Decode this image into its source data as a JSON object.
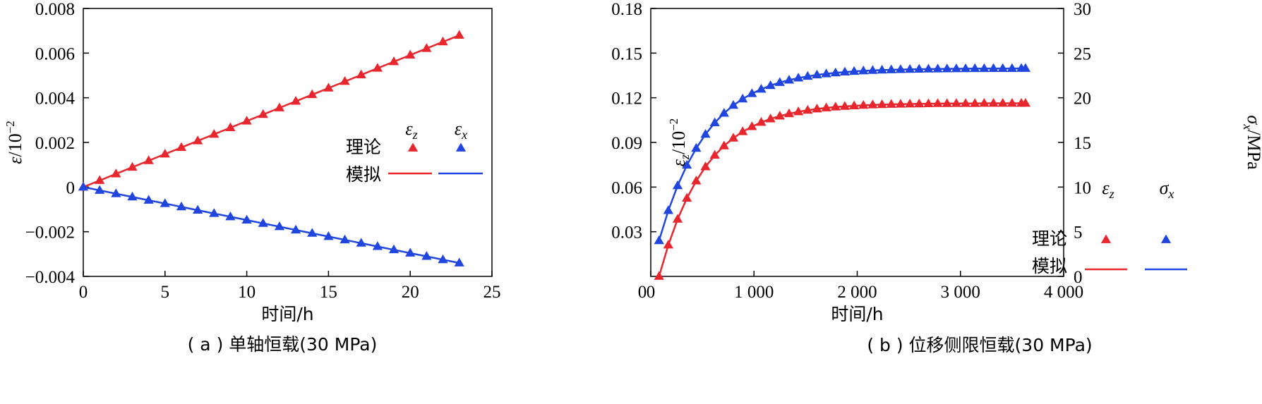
{
  "chart_data": [
    {
      "type": "line",
      "caption": "( a ) 单轴恒载(30 MPa)",
      "xlabel": "时间/h",
      "ylabel": {
        "main": "ε",
        "exp": "/10",
        "sup": "−2"
      },
      "xlim": [
        0,
        25
      ],
      "ylim": [
        -0.004,
        0.008
      ],
      "xticks": [
        0,
        5,
        10,
        15,
        20,
        25
      ],
      "xtick_labels": [
        "0",
        "5",
        "10",
        "15",
        "20",
        "25"
      ],
      "yticks": [
        -0.004,
        -0.002,
        0,
        0.002,
        0.004,
        0.006,
        0.008
      ],
      "ytick_labels": [
        "−0.004",
        "−0.002",
        "0",
        "0.002",
        "0.004",
        "0.006",
        "0.008"
      ],
      "legend": {
        "position": "right-middle",
        "col_labels": [
          {
            "main": "ε",
            "sub": "z"
          },
          {
            "main": "ε",
            "sub": "x"
          }
        ],
        "row_labels": [
          "理论",
          "模拟"
        ]
      },
      "series": [
        {
          "name": "ε_z",
          "color": "#e8262d",
          "x": [
            0,
            1,
            2,
            3,
            4,
            5,
            6,
            7,
            8,
            9,
            10,
            11,
            12,
            13,
            14,
            15,
            16,
            17,
            18,
            19,
            20,
            21,
            22,
            23
          ],
          "values": [
            0,
            0.000296,
            0.000591,
            0.000887,
            0.001183,
            0.001478,
            0.001774,
            0.00207,
            0.002365,
            0.002661,
            0.002957,
            0.003252,
            0.003548,
            0.003843,
            0.004139,
            0.004435,
            0.00473,
            0.005026,
            0.005322,
            0.005617,
            0.005913,
            0.006209,
            0.006504,
            0.0068
          ]
        },
        {
          "name": "ε_x",
          "color": "#2146e0",
          "x": [
            0,
            1,
            2,
            3,
            4,
            5,
            6,
            7,
            8,
            9,
            10,
            11,
            12,
            13,
            14,
            15,
            16,
            17,
            18,
            19,
            20,
            21,
            22,
            23
          ],
          "values": [
            0,
            -0.000148,
            -0.000296,
            -0.000443,
            -0.000591,
            -0.000739,
            -0.000887,
            -0.001035,
            -0.001183,
            -0.00133,
            -0.001478,
            -0.001626,
            -0.001774,
            -0.001922,
            -0.00207,
            -0.002217,
            -0.002365,
            -0.002513,
            -0.002661,
            -0.002809,
            -0.002957,
            -0.003104,
            -0.003252,
            -0.0034
          ]
        }
      ]
    },
    {
      "type": "line",
      "caption": "( b ) 位移侧限恒载(30 MPa)",
      "xlabel": "时间/h",
      "ylabel": {
        "main": "ε",
        "sub": "z",
        "exp": "/10",
        "sup": "−2"
      },
      "y2label": {
        "main": "σ",
        "sub": "x",
        "unit": "/MPa"
      },
      "xlim": [
        0,
        4000
      ],
      "ylim": [
        0,
        0.18
      ],
      "y2lim": [
        0,
        30
      ],
      "xticks": [
        0,
        1000,
        2000,
        3000,
        4000
      ],
      "xtick_labels": [
        "0",
        "1 000",
        "2 000",
        "3 000",
        "4 000"
      ],
      "yticks": [
        0.03,
        0.06,
        0.09,
        0.12,
        0.15,
        0.18
      ],
      "ytick_labels": [
        "0.03",
        "0.06",
        "0.09",
        "0.12",
        "0.15",
        "0.18"
      ],
      "y2ticks": [
        0,
        5,
        10,
        15,
        20,
        25,
        30
      ],
      "y2tick_labels": [
        "0",
        "5",
        "10",
        "15",
        "20",
        "25",
        "30"
      ],
      "legend": {
        "position": "bottom-right",
        "col_labels": [
          {
            "main": "ε",
            "sub": "z"
          },
          {
            "main": "σ",
            "sub": "x"
          }
        ],
        "row_labels": [
          "理论",
          "模拟"
        ]
      },
      "series": [
        {
          "name": "ε_z",
          "axis": "left",
          "color": "#e8262d",
          "x": [
            80,
            170,
            260,
            350,
            440,
            530,
            620,
            710,
            800,
            890,
            980,
            1070,
            1160,
            1250,
            1340,
            1430,
            1520,
            1610,
            1700,
            1790,
            1880,
            1970,
            2060,
            2150,
            2240,
            2330,
            2420,
            2510,
            2600,
            2690,
            2780,
            2870,
            2960,
            3050,
            3140,
            3230,
            3320,
            3410,
            3500,
            3590,
            3630
          ],
          "values": [
            0,
            0.0211,
            0.0384,
            0.0525,
            0.0641,
            0.0736,
            0.0814,
            0.0877,
            0.0929,
            0.0972,
            0.1006,
            0.1035,
            0.1058,
            0.1077,
            0.1093,
            0.1106,
            0.1116,
            0.1125,
            0.1132,
            0.1138,
            0.1142,
            0.1146,
            0.1149,
            0.1152,
            0.1154,
            0.1156,
            0.1157,
            0.1158,
            0.1159,
            0.116,
            0.1161,
            0.1161,
            0.1162,
            0.1162,
            0.1162,
            0.1163,
            0.1163,
            0.1163,
            0.1163,
            0.1163,
            0.1163
          ]
        },
        {
          "name": "σ_x",
          "axis": "right",
          "color": "#2146e0",
          "x": [
            80,
            170,
            260,
            350,
            440,
            530,
            620,
            710,
            800,
            890,
            980,
            1070,
            1160,
            1250,
            1340,
            1430,
            1520,
            1610,
            1700,
            1790,
            1880,
            1970,
            2060,
            2150,
            2240,
            2330,
            2420,
            2510,
            2600,
            2690,
            2780,
            2870,
            2960,
            3050,
            3140,
            3230,
            3320,
            3410,
            3500,
            3590,
            3630
          ],
          "values": [
            4,
            7.37,
            10.15,
            12.45,
            14.34,
            15.91,
            17.2,
            18.27,
            19.15,
            19.87,
            20.47,
            20.96,
            21.37,
            21.71,
            21.98,
            22.21,
            22.4,
            22.56,
            22.68,
            22.79,
            22.88,
            22.95,
            23.01,
            23.06,
            23.1,
            23.13,
            23.16,
            23.18,
            23.2,
            23.22,
            23.23,
            23.24,
            23.25,
            23.26,
            23.27,
            23.27,
            23.28,
            23.28,
            23.28,
            23.29,
            23.29
          ]
        }
      ]
    }
  ]
}
